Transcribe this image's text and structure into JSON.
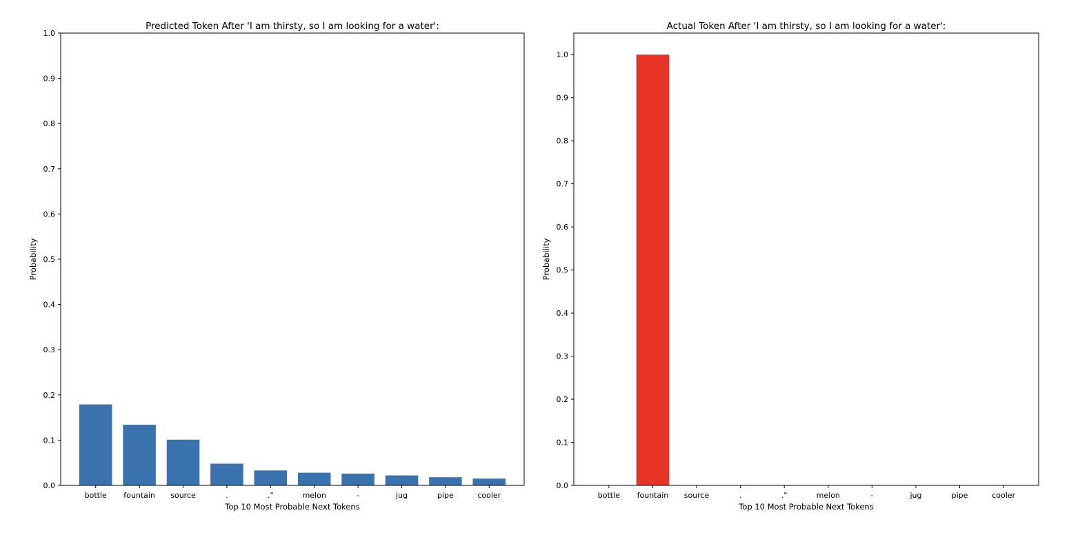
{
  "chart_data": [
    {
      "type": "bar",
      "title": "Predicted Token After 'I am thirsty, so I am looking for a water':",
      "xlabel": "Top 10 Most Probable Next Tokens",
      "ylabel": "Probability",
      "categories": [
        "bottle",
        "fountain",
        "source",
        ".",
        ".\"",
        "melon",
        "-",
        "jug",
        "pipe",
        "cooler"
      ],
      "values": [
        0.179,
        0.134,
        0.101,
        0.048,
        0.033,
        0.028,
        0.026,
        0.022,
        0.018,
        0.015
      ],
      "ylim": [
        0,
        1.0
      ],
      "yticks": [
        0.0,
        0.1,
        0.2,
        0.3,
        0.4,
        0.5,
        0.6,
        0.7,
        0.8,
        0.9,
        1.0
      ],
      "ytick_labels": [
        "0.0",
        "0.1",
        "0.2",
        "0.3",
        "0.4",
        "0.5",
        "0.6",
        "0.7",
        "0.8",
        "0.9",
        "1.0"
      ],
      "bar_color": "#3a72ae",
      "grid": false
    },
    {
      "type": "bar",
      "title": "Actual Token After 'I am thirsty, so I am looking for a water':",
      "xlabel": "Top 10 Most Probable Next Tokens",
      "ylabel": "Probability",
      "categories": [
        "bottle",
        "fountain",
        "source",
        ".",
        ".\"",
        "melon",
        "-",
        "jug",
        "pipe",
        "cooler"
      ],
      "values": [
        0,
        1.0,
        0,
        0,
        0,
        0,
        0,
        0,
        0,
        0
      ],
      "ylim": [
        0,
        1.05
      ],
      "yticks": [
        0.0,
        0.1,
        0.2,
        0.3,
        0.4,
        0.5,
        0.6,
        0.7,
        0.8,
        0.9,
        1.0
      ],
      "ytick_labels": [
        "0.0",
        "0.1",
        "0.2",
        "0.3",
        "0.4",
        "0.5",
        "0.6",
        "0.7",
        "0.8",
        "0.9",
        "1.0"
      ],
      "bar_color": "#e83427",
      "grid": false
    }
  ]
}
